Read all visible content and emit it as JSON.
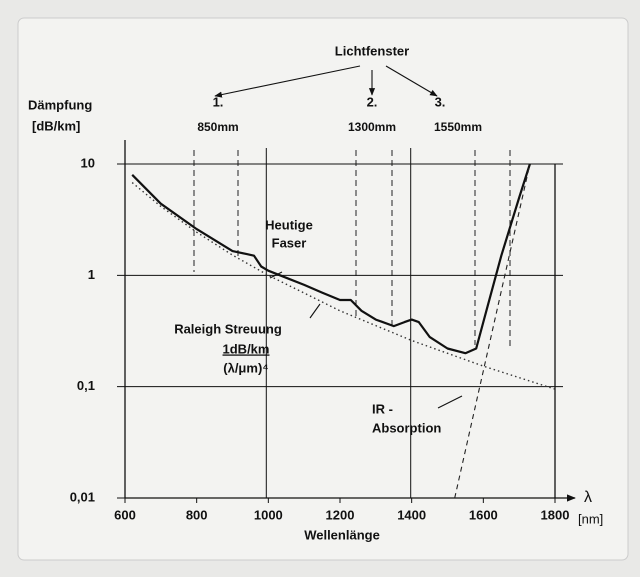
{
  "chart_data": {
    "type": "line",
    "xlabel": "Wellenlänge",
    "ylabel": "Dämpfung",
    "yunit": "[dB/km]",
    "xsymbol": "λ",
    "xunit": "[nm]",
    "log_y": true,
    "grid": true,
    "xlim": [
      600,
      1800
    ],
    "xticks": [
      600,
      800,
      1000,
      1200,
      1400,
      1600,
      1800
    ],
    "ylim": [
      0.01,
      10
    ],
    "yticks": [
      {
        "value": 0.01,
        "label": "0,01"
      },
      {
        "value": 0.1,
        "label": "0,1"
      },
      1,
      10
    ],
    "series": [
      {
        "style": "solid",
        "color": "#111111",
        "x": [
          620,
          700,
          800,
          900,
          940,
          960,
          980,
          1000,
          1050,
          1100,
          1150,
          1200,
          1230,
          1260,
          1300,
          1350,
          1380,
          1400,
          1420,
          1450,
          1500,
          1550,
          1580,
          1610,
          1650,
          1700,
          1730
        ],
        "values": [
          8,
          4.4,
          2.6,
          1.65,
          1.55,
          1.5,
          1.2,
          1.1,
          0.95,
          0.82,
          0.7,
          0.6,
          0.6,
          0.48,
          0.4,
          0.35,
          0.38,
          0.4,
          0.38,
          0.28,
          0.22,
          0.2,
          0.22,
          0.5,
          1.5,
          5,
          10
        ]
      },
      {
        "style": "dotted",
        "color": "#333333",
        "x": [
          620,
          700,
          800,
          900,
          1000,
          1200,
          1400,
          1600,
          1800
        ],
        "values": [
          6.8,
          4.16,
          2.44,
          1.52,
          1,
          0.48,
          0.26,
          0.153,
          0.095
        ]
      },
      {
        "style": "dashed",
        "color": "#222222",
        "x": [
          1520,
          1730
        ],
        "values": [
          0.01,
          10
        ]
      }
    ],
    "annotations": [
      "Lichtfenster",
      "1.",
      "850mm",
      "2.",
      "1300mm",
      "3.",
      "1550mm",
      "Heutige",
      "Faser",
      "Raleigh Streuung",
      "1dB/km",
      "(λ/μm)⁴",
      "IR -",
      "Absorption"
    ]
  }
}
